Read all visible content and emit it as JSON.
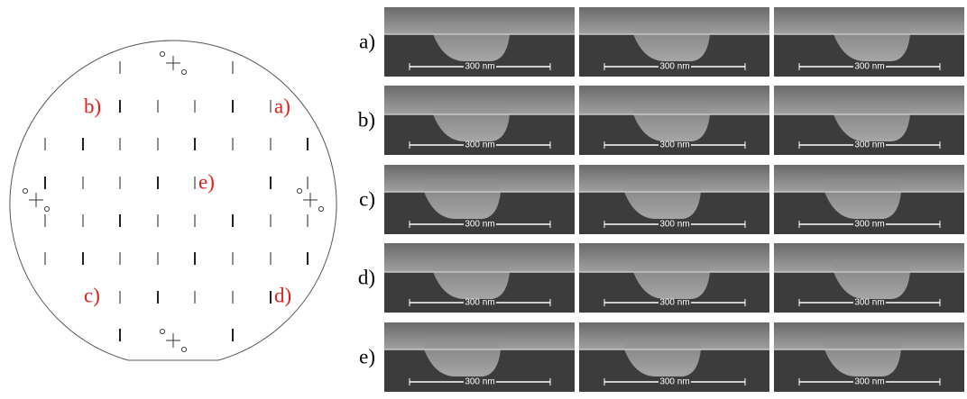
{
  "wafer": {
    "labels": [
      "b)",
      "a)",
      "e)",
      "c)",
      "d)"
    ]
  },
  "rows": [
    {
      "label": "a)",
      "scale_bars": [
        "300 nm",
        "300 nm",
        "300 nm"
      ]
    },
    {
      "label": "b)",
      "scale_bars": [
        "300 nm",
        "300 nm",
        "300 nm"
      ]
    },
    {
      "label": "c)",
      "scale_bars": [
        "300 nm",
        "300 nm",
        "300 nm"
      ]
    },
    {
      "label": "d)",
      "scale_bars": [
        "300 nm",
        "300 nm",
        "300 nm"
      ]
    },
    {
      "label": "e)",
      "scale_bars": [
        "300 nm",
        "300 nm",
        "300 nm"
      ]
    }
  ]
}
